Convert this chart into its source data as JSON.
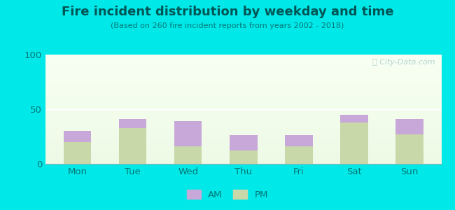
{
  "title": "Fire incident distribution by weekday and time",
  "subtitle": "(Based on 260 fire incident reports from years 2002 - 2018)",
  "categories": [
    "Mon",
    "Tue",
    "Wed",
    "Thu",
    "Fri",
    "Sat",
    "Sun"
  ],
  "pm_values": [
    20,
    33,
    16,
    12,
    16,
    38,
    27
  ],
  "am_values": [
    10,
    8,
    23,
    14,
    10,
    7,
    14
  ],
  "am_color": "#c8a8d8",
  "pm_color": "#c8d8a8",
  "background_color": "#00e8e8",
  "ylim": [
    0,
    100
  ],
  "yticks": [
    0,
    50,
    100
  ],
  "bar_width": 0.5,
  "watermark": "Ⓢ City-Data.com",
  "title_color": "#005555",
  "subtitle_color": "#007777",
  "tick_color": "#007777"
}
